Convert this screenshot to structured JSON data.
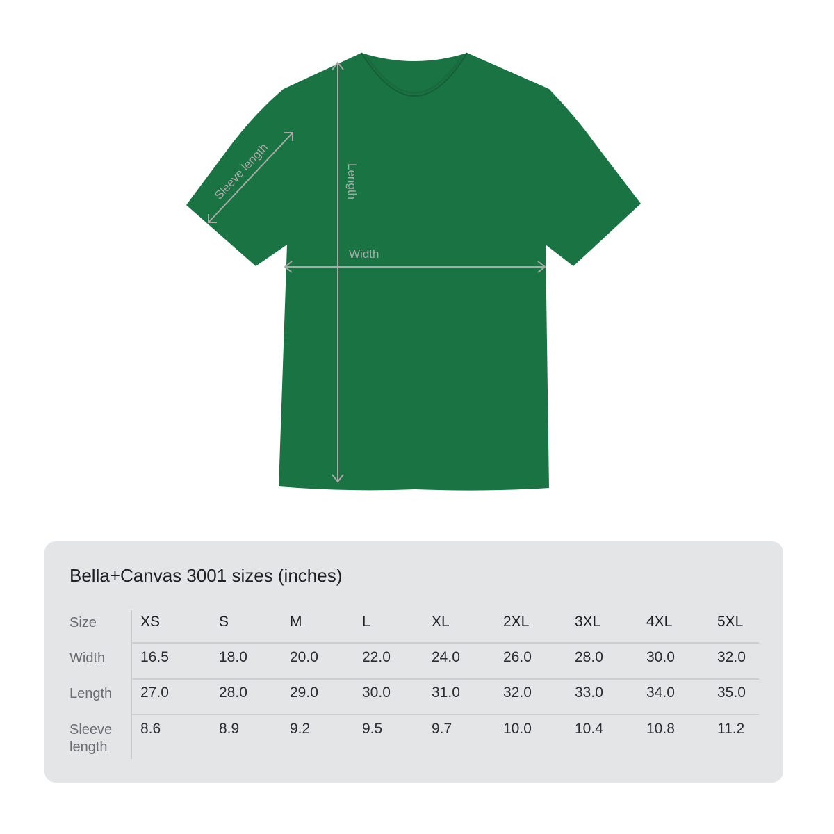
{
  "garment": {
    "color": "#197343",
    "measure_line_color": "#a9aaa8",
    "labels": {
      "length": "Length",
      "width": "Width",
      "sleeve": "Sleeve length"
    }
  },
  "size_chart": {
    "title": "Bella+Canvas 3001 sizes (inches)",
    "row_labels": [
      "Size",
      "Width",
      "Length",
      "Sleeve length"
    ],
    "sizes": [
      "XS",
      "S",
      "M",
      "L",
      "XL",
      "2XL",
      "3XL",
      "4XL",
      "5XL"
    ],
    "width": [
      "16.5",
      "18.0",
      "20.0",
      "22.0",
      "24.0",
      "26.0",
      "28.0",
      "30.0",
      "32.0"
    ],
    "length": [
      "27.0",
      "28.0",
      "29.0",
      "30.0",
      "31.0",
      "32.0",
      "33.0",
      "34.0",
      "35.0"
    ],
    "sleeve_length": [
      "8.6",
      "8.9",
      "9.2",
      "9.5",
      "9.7",
      "10.0",
      "10.4",
      "10.8",
      "11.2"
    ]
  }
}
